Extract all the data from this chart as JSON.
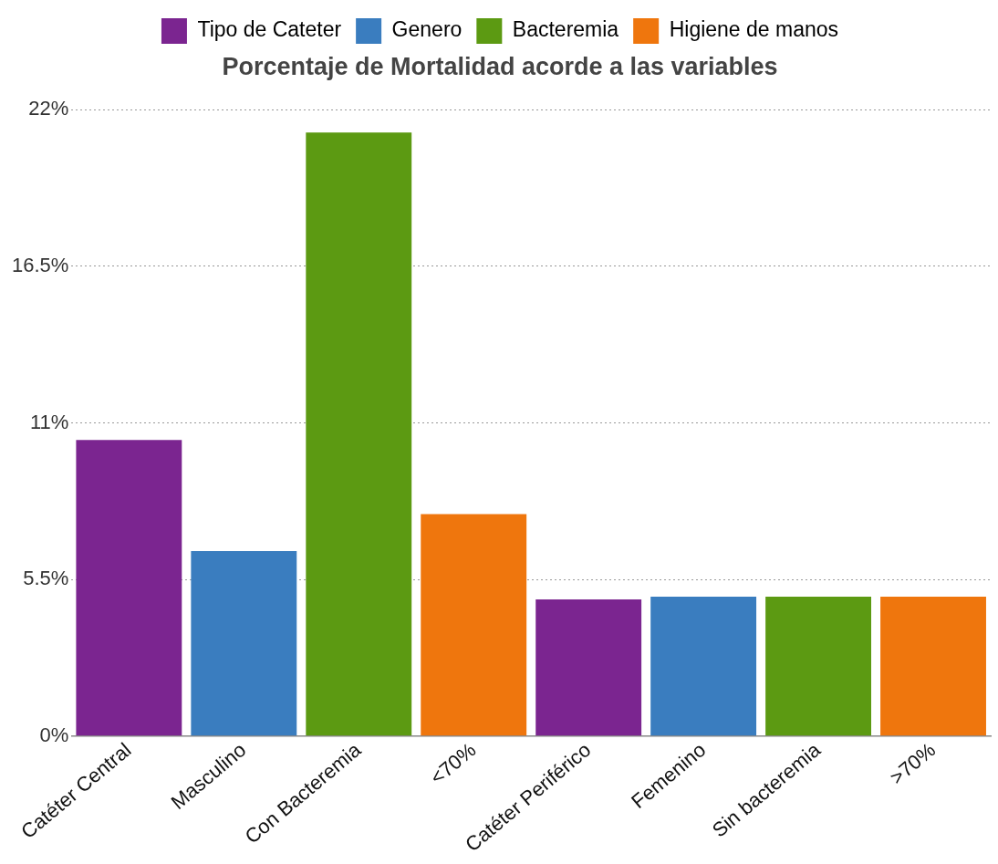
{
  "chart_data": {
    "type": "bar",
    "title": "Porcentaje de Mortalidad acorde a las variables",
    "categories": [
      "Catéter Central",
      "Masculino",
      "Con Bacteremia",
      "<70%",
      "Catéter Periférico",
      "Femenino",
      "Sin bacteremia",
      ">70%"
    ],
    "series": [
      {
        "name": "Tipo de Cateter",
        "color": "#7b2590",
        "values": [
          10.4,
          null,
          null,
          null,
          4.8,
          null,
          null,
          null
        ]
      },
      {
        "name": "Genero",
        "color": "#3a7dbf",
        "values": [
          null,
          6.5,
          null,
          null,
          null,
          4.9,
          null,
          null
        ]
      },
      {
        "name": "Bacteremia",
        "color": "#5c9a12",
        "values": [
          null,
          null,
          21.2,
          null,
          null,
          null,
          4.9,
          null
        ]
      },
      {
        "name": "Higiene de manos",
        "color": "#ef760d",
        "values": [
          null,
          null,
          null,
          7.8,
          null,
          null,
          null,
          4.9
        ]
      }
    ],
    "ylim": [
      0,
      22
    ],
    "yticks": [
      {
        "value": 0,
        "label": "0%"
      },
      {
        "value": 5.5,
        "label": "5.5%"
      },
      {
        "value": 11,
        "label": "11%"
      },
      {
        "value": 16.5,
        "label": "16.5%"
      },
      {
        "value": 22,
        "label": "22%"
      }
    ],
    "grid": "y",
    "legend": "top"
  }
}
